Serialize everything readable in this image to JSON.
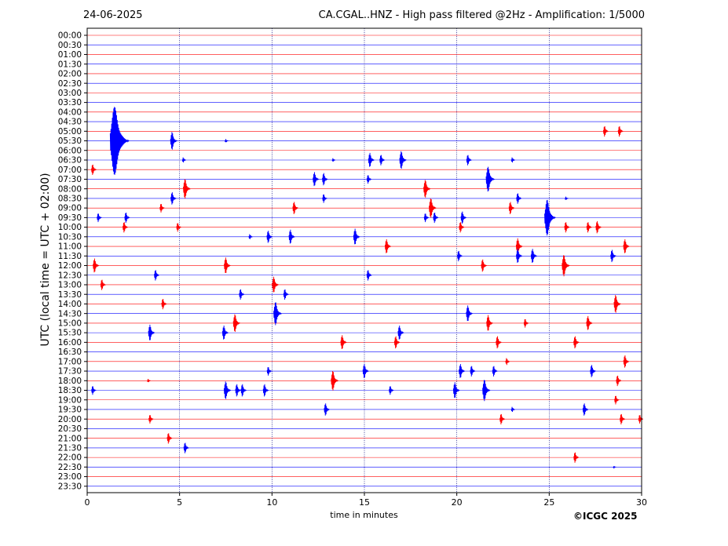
{
  "header": {
    "date": "24-06-2025",
    "title": "CA.CGAL..HNZ - High pass filtered @2Hz - Amplification: 1/5000"
  },
  "footer": {
    "copyright": "©ICGC 2025"
  },
  "chart_data": {
    "type": "line",
    "title": "CA.CGAL..HNZ - High pass filtered @2Hz - Amplification: 1/5000",
    "xlabel": "time in minutes",
    "ylabel": "UTC (local time = UTC + 02:00)",
    "xlim": [
      0,
      30
    ],
    "x_ticks": [
      0,
      5,
      10,
      15,
      20,
      25,
      30
    ],
    "vertical_gridlines_at": [
      5,
      10,
      15,
      20,
      25
    ],
    "grid": true,
    "row_colors": [
      "#ff0000",
      "#0000ff"
    ],
    "rows": [
      "00:00",
      "00:30",
      "01:00",
      "01:30",
      "02:00",
      "02:30",
      "03:00",
      "03:30",
      "04:00",
      "04:30",
      "05:00",
      "05:30",
      "06:00",
      "06:30",
      "07:00",
      "07:30",
      "08:00",
      "08:30",
      "09:00",
      "09:30",
      "10:00",
      "10:30",
      "11:00",
      "11:30",
      "12:00",
      "12:30",
      "13:00",
      "13:30",
      "14:00",
      "14:30",
      "15:00",
      "15:30",
      "16:00",
      "16:30",
      "17:00",
      "17:30",
      "18:00",
      "18:30",
      "19:00",
      "19:30",
      "20:00",
      "20:30",
      "21:00",
      "21:30",
      "22:00",
      "22:30",
      "23:00",
      "23:30"
    ],
    "events": [
      {
        "row": "05:00",
        "t": 28.0,
        "amp": 6
      },
      {
        "row": "05:00",
        "t": 28.8,
        "amp": 6
      },
      {
        "row": "05:30",
        "t": 1.5,
        "amp": 38
      },
      {
        "row": "05:30",
        "t": 4.6,
        "amp": 10
      },
      {
        "row": "05:30",
        "t": 7.5,
        "amp": 2
      },
      {
        "row": "06:30",
        "t": 5.2,
        "amp": 3
      },
      {
        "row": "06:30",
        "t": 13.3,
        "amp": 2
      },
      {
        "row": "06:30",
        "t": 15.3,
        "amp": 8
      },
      {
        "row": "06:30",
        "t": 15.9,
        "amp": 6
      },
      {
        "row": "06:30",
        "t": 17.0,
        "amp": 10
      },
      {
        "row": "06:30",
        "t": 20.6,
        "amp": 6
      },
      {
        "row": "06:30",
        "t": 23.0,
        "amp": 3
      },
      {
        "row": "07:00",
        "t": 0.3,
        "amp": 6
      },
      {
        "row": "07:30",
        "t": 12.3,
        "amp": 8
      },
      {
        "row": "07:30",
        "t": 12.8,
        "amp": 7
      },
      {
        "row": "07:30",
        "t": 15.2,
        "amp": 5
      },
      {
        "row": "07:30",
        "t": 21.7,
        "amp": 14
      },
      {
        "row": "08:00",
        "t": 5.3,
        "amp": 11
      },
      {
        "row": "08:00",
        "t": 18.3,
        "amp": 10
      },
      {
        "row": "08:30",
        "t": 4.6,
        "amp": 7
      },
      {
        "row": "08:30",
        "t": 12.8,
        "amp": 5
      },
      {
        "row": "08:30",
        "t": 23.3,
        "amp": 6
      },
      {
        "row": "08:30",
        "t": 25.9,
        "amp": 2
      },
      {
        "row": "09:00",
        "t": 4.0,
        "amp": 5
      },
      {
        "row": "09:00",
        "t": 11.2,
        "amp": 7
      },
      {
        "row": "09:00",
        "t": 18.6,
        "amp": 11
      },
      {
        "row": "09:00",
        "t": 22.9,
        "amp": 7
      },
      {
        "row": "09:30",
        "t": 0.6,
        "amp": 5
      },
      {
        "row": "09:30",
        "t": 2.1,
        "amp": 6
      },
      {
        "row": "09:30",
        "t": 18.3,
        "amp": 5
      },
      {
        "row": "09:30",
        "t": 18.8,
        "amp": 6
      },
      {
        "row": "09:30",
        "t": 20.3,
        "amp": 7
      },
      {
        "row": "09:30",
        "t": 24.9,
        "amp": 20
      },
      {
        "row": "10:00",
        "t": 2.0,
        "amp": 6
      },
      {
        "row": "10:00",
        "t": 4.9,
        "amp": 5
      },
      {
        "row": "10:00",
        "t": 20.2,
        "amp": 6
      },
      {
        "row": "10:00",
        "t": 25.9,
        "amp": 6
      },
      {
        "row": "10:00",
        "t": 27.1,
        "amp": 6
      },
      {
        "row": "10:00",
        "t": 27.6,
        "amp": 7
      },
      {
        "row": "10:30",
        "t": 8.8,
        "amp": 3
      },
      {
        "row": "10:30",
        "t": 9.8,
        "amp": 7
      },
      {
        "row": "10:30",
        "t": 11.0,
        "amp": 8
      },
      {
        "row": "10:30",
        "t": 14.5,
        "amp": 9
      },
      {
        "row": "11:00",
        "t": 16.2,
        "amp": 8
      },
      {
        "row": "11:00",
        "t": 23.3,
        "amp": 9
      },
      {
        "row": "11:00",
        "t": 29.1,
        "amp": 8
      },
      {
        "row": "11:30",
        "t": 20.1,
        "amp": 6
      },
      {
        "row": "11:30",
        "t": 23.3,
        "amp": 8
      },
      {
        "row": "11:30",
        "t": 24.1,
        "amp": 8
      },
      {
        "row": "11:30",
        "t": 28.4,
        "amp": 7
      },
      {
        "row": "12:00",
        "t": 0.4,
        "amp": 8
      },
      {
        "row": "12:00",
        "t": 7.5,
        "amp": 9
      },
      {
        "row": "12:00",
        "t": 21.4,
        "amp": 7
      },
      {
        "row": "12:00",
        "t": 25.8,
        "amp": 12
      },
      {
        "row": "12:30",
        "t": 3.7,
        "amp": 6
      },
      {
        "row": "12:30",
        "t": 15.2,
        "amp": 6
      },
      {
        "row": "13:00",
        "t": 0.8,
        "amp": 6
      },
      {
        "row": "13:00",
        "t": 10.1,
        "amp": 9
      },
      {
        "row": "13:30",
        "t": 8.3,
        "amp": 6
      },
      {
        "row": "13:30",
        "t": 10.7,
        "amp": 6
      },
      {
        "row": "14:00",
        "t": 4.1,
        "amp": 6
      },
      {
        "row": "14:00",
        "t": 28.6,
        "amp": 10
      },
      {
        "row": "14:30",
        "t": 10.2,
        "amp": 13
      },
      {
        "row": "14:30",
        "t": 20.6,
        "amp": 9
      },
      {
        "row": "15:00",
        "t": 8.0,
        "amp": 10
      },
      {
        "row": "15:00",
        "t": 21.7,
        "amp": 9
      },
      {
        "row": "15:00",
        "t": 23.7,
        "amp": 5
      },
      {
        "row": "15:00",
        "t": 27.1,
        "amp": 8
      },
      {
        "row": "15:30",
        "t": 3.4,
        "amp": 9
      },
      {
        "row": "15:30",
        "t": 7.4,
        "amp": 8
      },
      {
        "row": "15:30",
        "t": 16.9,
        "amp": 8
      },
      {
        "row": "16:00",
        "t": 13.8,
        "amp": 8
      },
      {
        "row": "16:00",
        "t": 16.7,
        "amp": 7
      },
      {
        "row": "16:00",
        "t": 22.2,
        "amp": 7
      },
      {
        "row": "16:00",
        "t": 26.4,
        "amp": 7
      },
      {
        "row": "17:00",
        "t": 22.7,
        "amp": 4
      },
      {
        "row": "17:00",
        "t": 29.1,
        "amp": 7
      },
      {
        "row": "17:30",
        "t": 9.8,
        "amp": 5
      },
      {
        "row": "17:30",
        "t": 15.0,
        "amp": 8
      },
      {
        "row": "17:30",
        "t": 20.2,
        "amp": 8
      },
      {
        "row": "17:30",
        "t": 20.8,
        "amp": 6
      },
      {
        "row": "17:30",
        "t": 22.0,
        "amp": 6
      },
      {
        "row": "17:30",
        "t": 27.3,
        "amp": 7
      },
      {
        "row": "18:00",
        "t": 3.3,
        "amp": 2
      },
      {
        "row": "18:00",
        "t": 13.3,
        "amp": 11
      },
      {
        "row": "18:00",
        "t": 28.7,
        "amp": 6
      },
      {
        "row": "18:30",
        "t": 0.3,
        "amp": 5
      },
      {
        "row": "18:30",
        "t": 7.5,
        "amp": 10
      },
      {
        "row": "18:30",
        "t": 8.1,
        "amp": 7
      },
      {
        "row": "18:30",
        "t": 8.4,
        "amp": 7
      },
      {
        "row": "18:30",
        "t": 9.6,
        "amp": 7
      },
      {
        "row": "18:30",
        "t": 16.4,
        "amp": 5
      },
      {
        "row": "18:30",
        "t": 19.9,
        "amp": 9
      },
      {
        "row": "18:30",
        "t": 21.5,
        "amp": 12
      },
      {
        "row": "19:00",
        "t": 28.6,
        "amp": 5
      },
      {
        "row": "19:30",
        "t": 12.9,
        "amp": 7
      },
      {
        "row": "19:30",
        "t": 23.0,
        "amp": 3
      },
      {
        "row": "19:30",
        "t": 26.9,
        "amp": 7
      },
      {
        "row": "20:00",
        "t": 3.4,
        "amp": 5
      },
      {
        "row": "20:00",
        "t": 22.4,
        "amp": 6
      },
      {
        "row": "20:00",
        "t": 28.9,
        "amp": 6
      },
      {
        "row": "20:00",
        "t": 29.9,
        "amp": 5
      },
      {
        "row": "21:00",
        "t": 4.4,
        "amp": 6
      },
      {
        "row": "21:30",
        "t": 5.3,
        "amp": 6
      },
      {
        "row": "22:00",
        "t": 26.4,
        "amp": 6
      },
      {
        "row": "22:30",
        "t": 28.5,
        "amp": 1
      }
    ]
  }
}
